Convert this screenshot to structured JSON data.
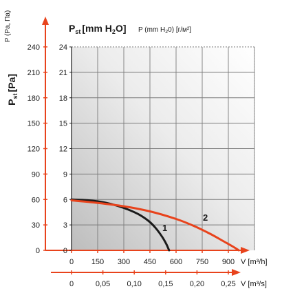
{
  "chart_data": {
    "type": "line",
    "title": "",
    "left_axis_pa": {
      "label_main": "P",
      "label_sub": "st",
      "label_unit": "[Pa]",
      "side_label": "P (Pa, Па)",
      "ticks": [
        0,
        30,
        60,
        90,
        120,
        150,
        180,
        210,
        240
      ],
      "tick_labels": [
        "0",
        "30",
        "60",
        "90",
        "120",
        "150",
        "180",
        "210",
        "240"
      ]
    },
    "inner_axis_mm": {
      "label_main": "P",
      "label_sub": "st",
      "label_unit": "[mm H",
      "label_unit_sub": "2",
      "label_unit_end": "O]",
      "side_label_pre": "P (mm H",
      "side_label_sub": "2",
      "side_label_post": "0) [г/м²]",
      "ticks": [
        0,
        3,
        6,
        9,
        12,
        15,
        18,
        21,
        24
      ],
      "tick_labels": [
        "0",
        "3",
        "6",
        "9",
        "12",
        "15",
        "18",
        "21",
        "24"
      ]
    },
    "x_axis_m3h": {
      "label": "V [m³/h]",
      "ticks": [
        0,
        150,
        300,
        450,
        600,
        750,
        900
      ],
      "tick_labels": [
        "0",
        "150",
        "300",
        "450",
        "600",
        "750",
        "900"
      ]
    },
    "x_axis_m3s": {
      "label": "V [m³/s]",
      "ticks": [
        0,
        0.05,
        0.1,
        0.15,
        0.2,
        0.25
      ],
      "tick_labels": [
        "0",
        "0,05",
        "0,10",
        "0,15",
        "0,20",
        "0,25"
      ]
    },
    "xlim": [
      0,
      1050
    ],
    "ylim": [
      0,
      24
    ],
    "grid": true,
    "series": [
      {
        "name": "1",
        "color": "#1a1a1a",
        "x": [
          0,
          100,
          200,
          300,
          380,
          440,
          480,
          520,
          545,
          560
        ],
        "y": [
          6.0,
          5.9,
          5.6,
          5.0,
          4.3,
          3.5,
          2.7,
          1.6,
          0.7,
          0
        ]
      },
      {
        "name": "2",
        "color": "#e8431c",
        "x": [
          0,
          150,
          300,
          450,
          600,
          700,
          800,
          870,
          930,
          960
        ],
        "y": [
          5.9,
          5.6,
          5.2,
          4.6,
          3.7,
          2.9,
          1.9,
          1.1,
          0.4,
          0
        ]
      }
    ],
    "accent_color": "#e8431c",
    "grid_color": "#7a7a7a"
  }
}
